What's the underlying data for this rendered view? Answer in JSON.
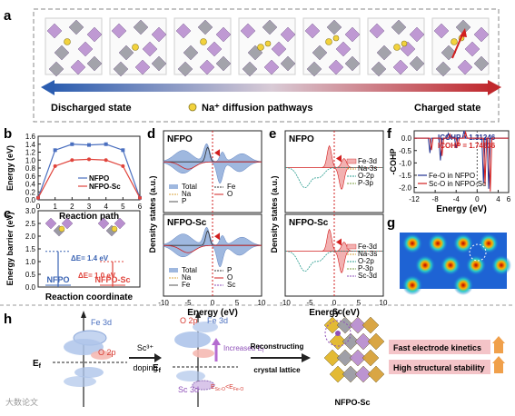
{
  "panel_labels": {
    "a": "a",
    "b": "b",
    "c": "c",
    "d": "d",
    "e": "e",
    "f": "f",
    "g": "g",
    "h": "h"
  },
  "panel_a": {
    "left_label": "Discharged state",
    "right_label": "Charged state",
    "legend": "Na⁺ diffusion pathways"
  },
  "chart_data": [
    {
      "id": "b",
      "type": "line",
      "xlabel": "Reaction path",
      "ylabel": "Energy (eV)",
      "xlim": [
        0,
        6
      ],
      "ylim": [
        0.0,
        1.6
      ],
      "yticks": [
        "0.0",
        "0.2",
        "0.4",
        "0.6",
        "0.8",
        "1.0",
        "1.2",
        "1.4",
        "1.6"
      ],
      "xticks": [
        "0",
        "1",
        "2",
        "3",
        "4",
        "5",
        "6"
      ],
      "series": [
        {
          "name": "NFPO",
          "color": "#4a6fbf",
          "x": [
            0,
            1,
            2,
            3,
            4,
            5,
            6
          ],
          "y": [
            0.05,
            1.25,
            1.4,
            1.38,
            1.4,
            1.25,
            0.05
          ]
        },
        {
          "name": "NFPO-Sc",
          "color": "#e0443c",
          "x": [
            0,
            1,
            2,
            3,
            4,
            5,
            6
          ],
          "y": [
            0.05,
            0.85,
            1.0,
            1.02,
            1.0,
            0.85,
            0.05
          ]
        }
      ]
    },
    {
      "id": "c",
      "type": "bar",
      "xlabel": "Reaction coordinate",
      "ylabel": "Energy barrier (eV)",
      "ylim": [
        0.0,
        3.0
      ],
      "yticks": [
        "0.0",
        "0.5",
        "1.0",
        "1.5",
        "2.0",
        "2.5",
        "3.0"
      ],
      "categories": [
        "NFPO",
        "NFPO-Sc"
      ],
      "values": [
        1.4,
        1.0
      ],
      "annotations": [
        "ΔE= 1.4 eV",
        "ΔE= 1.0 eV"
      ]
    },
    {
      "id": "d",
      "type": "area",
      "xlabel": "Energy (eV)",
      "ylabel": "Density states (a.u.)",
      "xlim": [
        -10,
        10
      ],
      "xticks": [
        "-10",
        "-5",
        "0",
        "5",
        "10"
      ],
      "subpanels": [
        {
          "title": "NFPO",
          "legend": [
            "Total",
            "Na",
            "P",
            "Fe",
            "O"
          ]
        },
        {
          "title": "NFPO-Sc",
          "legend": [
            "Total",
            "Na",
            "Fe",
            "P",
            "O",
            "Sc"
          ]
        }
      ]
    },
    {
      "id": "e",
      "type": "line",
      "xlabel": "Energy (eV)",
      "ylabel": "Density states (a.u.)",
      "xlim": [
        -10,
        10
      ],
      "xticks": [
        "-10",
        "-5",
        "0",
        "5",
        "10"
      ],
      "subpanels": [
        {
          "title": "NFPO",
          "legend": [
            "Fe-3d",
            "Na-3s",
            "O-2p",
            "P-3p"
          ]
        },
        {
          "title": "NFPO-Sc",
          "legend": [
            "Fe-3d",
            "Na-3s",
            "O-2p",
            "P-3p",
            "Sc-3d"
          ]
        }
      ]
    },
    {
      "id": "f",
      "type": "line",
      "xlabel": "Energy (eV)",
      "ylabel": "-COHP",
      "xlim": [
        -12,
        6
      ],
      "ylim": [
        -2.2,
        0.3
      ],
      "xticks": [
        "-12",
        "-8",
        "-4",
        "0",
        "4",
        "6"
      ],
      "yticks": [
        "-2.0",
        "-1.5",
        "-1.0",
        "-0.5",
        "0.0"
      ],
      "annotations": [
        "ICOHP = 1.31246",
        "ICOHP = 1.74636"
      ],
      "series": [
        {
          "name": "Fe-O in NFPO",
          "color": "#1f2f8f"
        },
        {
          "name": "Sc-O in NFPO-Sc",
          "color": "#d21f1f"
        }
      ]
    }
  ],
  "panel_h": {
    "fe3d": "Fe 3d",
    "o2p": "O 2p",
    "sc3d": "Sc 3d",
    "ef": "E",
    "ef_sub": "f",
    "doping_top": "Sc³⁺",
    "doping_bottom": "doping",
    "increased": "Increased E",
    "increased_sub": "f",
    "inequality": "E",
    "reconstruct_1": "Reconstructing",
    "reconstruct_2": "crystal lattice",
    "sc_label": "Sc",
    "nfpo_sc": "NFPO-Sc",
    "benefit_1": "Fast electrode kinetics",
    "benefit_2": "High structural stability"
  },
  "watermark": "大数论文"
}
